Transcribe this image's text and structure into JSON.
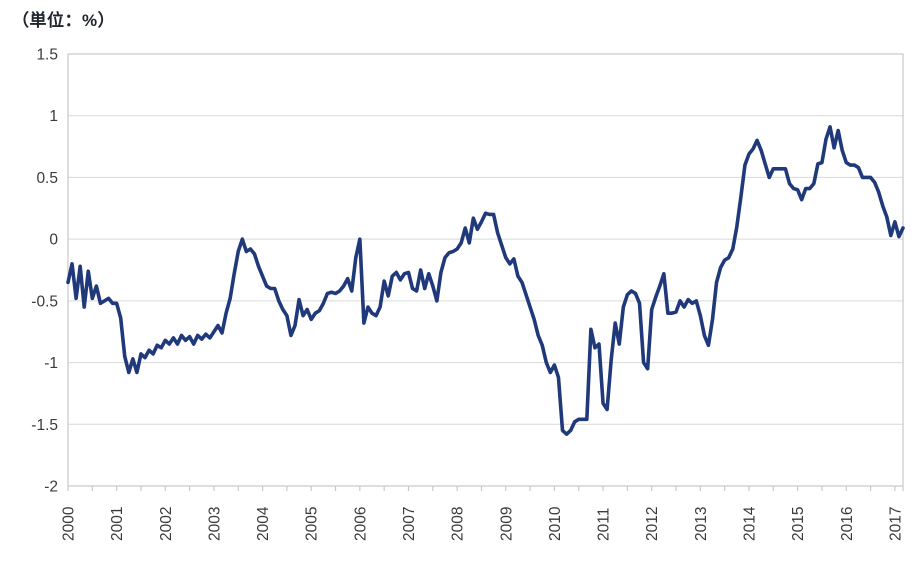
{
  "page": {
    "title": "（単位：%）"
  },
  "chart_data": {
    "type": "line",
    "title": "（単位：%）",
    "unit": "%",
    "frequency": "monthly",
    "period": {
      "start": "2000-01",
      "end": "2017-03"
    },
    "x_tick_labels": [
      "2000",
      "2001",
      "2002",
      "2003",
      "2004",
      "2005",
      "2006",
      "2007",
      "2008",
      "2009",
      "2010",
      "2011",
      "2012",
      "2013",
      "2014",
      "2015",
      "2016",
      "2017"
    ],
    "y_tick_labels": [
      "1.5",
      "1",
      "0.5",
      "0",
      "-0.5",
      "-1",
      "-1.5",
      "-2"
    ],
    "y_tick_values": [
      1.5,
      1,
      0.5,
      0,
      -0.5,
      -1,
      -1.5,
      -2
    ],
    "ylim": [
      -2,
      1.5
    ],
    "grid": true,
    "legend": false,
    "minor_x_ticks_per_year": 2,
    "line_color": "#20397a",
    "grid_color": "#d9d9d9",
    "axis_color": "#c9c9c9",
    "label_color": "#3b3b3b",
    "series": [
      {
        "name": "",
        "values": [
          -0.35,
          -0.2,
          -0.48,
          -0.22,
          -0.55,
          -0.26,
          -0.48,
          -0.38,
          -0.52,
          -0.5,
          -0.48,
          -0.52,
          -0.52,
          -0.64,
          -0.95,
          -1.08,
          -0.97,
          -1.08,
          -0.93,
          -0.96,
          -0.9,
          -0.93,
          -0.86,
          -0.88,
          -0.82,
          -0.85,
          -0.8,
          -0.85,
          -0.78,
          -0.82,
          -0.79,
          -0.85,
          -0.78,
          -0.81,
          -0.77,
          -0.8,
          -0.75,
          -0.7,
          -0.76,
          -0.6,
          -0.48,
          -0.28,
          -0.1,
          0.0,
          -0.1,
          -0.08,
          -0.12,
          -0.22,
          -0.3,
          -0.38,
          -0.4,
          -0.4,
          -0.5,
          -0.57,
          -0.62,
          -0.78,
          -0.7,
          -0.49,
          -0.62,
          -0.57,
          -0.65,
          -0.6,
          -0.58,
          -0.52,
          -0.44,
          -0.43,
          -0.44,
          -0.42,
          -0.38,
          -0.32,
          -0.42,
          -0.15,
          0.0,
          -0.68,
          -0.55,
          -0.6,
          -0.62,
          -0.55,
          -0.34,
          -0.46,
          -0.3,
          -0.27,
          -0.33,
          -0.28,
          -0.27,
          -0.4,
          -0.42,
          -0.25,
          -0.4,
          -0.28,
          -0.38,
          -0.5,
          -0.27,
          -0.15,
          -0.11,
          -0.1,
          -0.08,
          -0.03,
          0.09,
          -0.03,
          0.17,
          0.08,
          0.14,
          0.21,
          0.2,
          0.2,
          0.05,
          -0.05,
          -0.15,
          -0.2,
          -0.16,
          -0.3,
          -0.35,
          -0.45,
          -0.55,
          -0.65,
          -0.78,
          -0.86,
          -1.0,
          -1.08,
          -1.02,
          -1.12,
          -1.55,
          -1.58,
          -1.55,
          -1.48,
          -1.46,
          -1.46,
          -1.46,
          -0.73,
          -0.88,
          -0.85,
          -1.33,
          -1.38,
          -0.98,
          -0.68,
          -0.85,
          -0.55,
          -0.45,
          -0.42,
          -0.44,
          -0.52,
          -1.0,
          -1.05,
          -0.57,
          -0.47,
          -0.38,
          -0.28,
          -0.6,
          -0.6,
          -0.59,
          -0.5,
          -0.55,
          -0.49,
          -0.52,
          -0.5,
          -0.62,
          -0.78,
          -0.86,
          -0.65,
          -0.35,
          -0.23,
          -0.17,
          -0.15,
          -0.08,
          0.1,
          0.34,
          0.6,
          0.69,
          0.73,
          0.8,
          0.72,
          0.61,
          0.5,
          0.57,
          0.57,
          0.57,
          0.57,
          0.45,
          0.41,
          0.4,
          0.32,
          0.41,
          0.41,
          0.45,
          0.61,
          0.62,
          0.81,
          0.91,
          0.74,
          0.88,
          0.72,
          0.62,
          0.6,
          0.6,
          0.58,
          0.5,
          0.5,
          0.5,
          0.46,
          0.38,
          0.27,
          0.18,
          0.03,
          0.14,
          0.02,
          0.09
        ]
      }
    ]
  }
}
